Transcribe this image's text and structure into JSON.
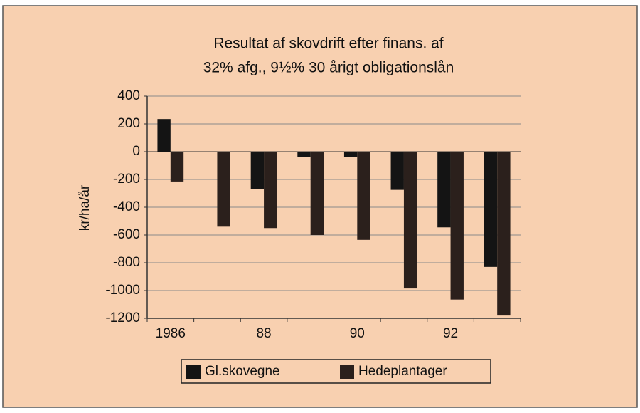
{
  "chart_data": {
    "type": "bar",
    "title": [
      "Resultat af skovdrift efter finans. af",
      "32% afg., 9½% 30 årigt obligationslån"
    ],
    "y_label": "kr/ha/år",
    "categories": [
      "1986",
      null,
      "88",
      null,
      "90",
      null,
      "92",
      null
    ],
    "series": [
      {
        "name": "Gl.skovegne",
        "color": "#141414",
        "values": [
          235,
          -5,
          -270,
          -40,
          -40,
          -275,
          -545,
          -830
        ]
      },
      {
        "name": "Hedeplantager",
        "color": "#2b201c",
        "values": [
          -215,
          -540,
          -550,
          -600,
          -635,
          -985,
          -1065,
          -1180
        ]
      }
    ],
    "ylim": [
      -1200,
      400
    ],
    "yticks": [
      -1200,
      -1000,
      -800,
      -600,
      -400,
      -200,
      0,
      200,
      400
    ],
    "grid": true,
    "legend": "bottom"
  }
}
